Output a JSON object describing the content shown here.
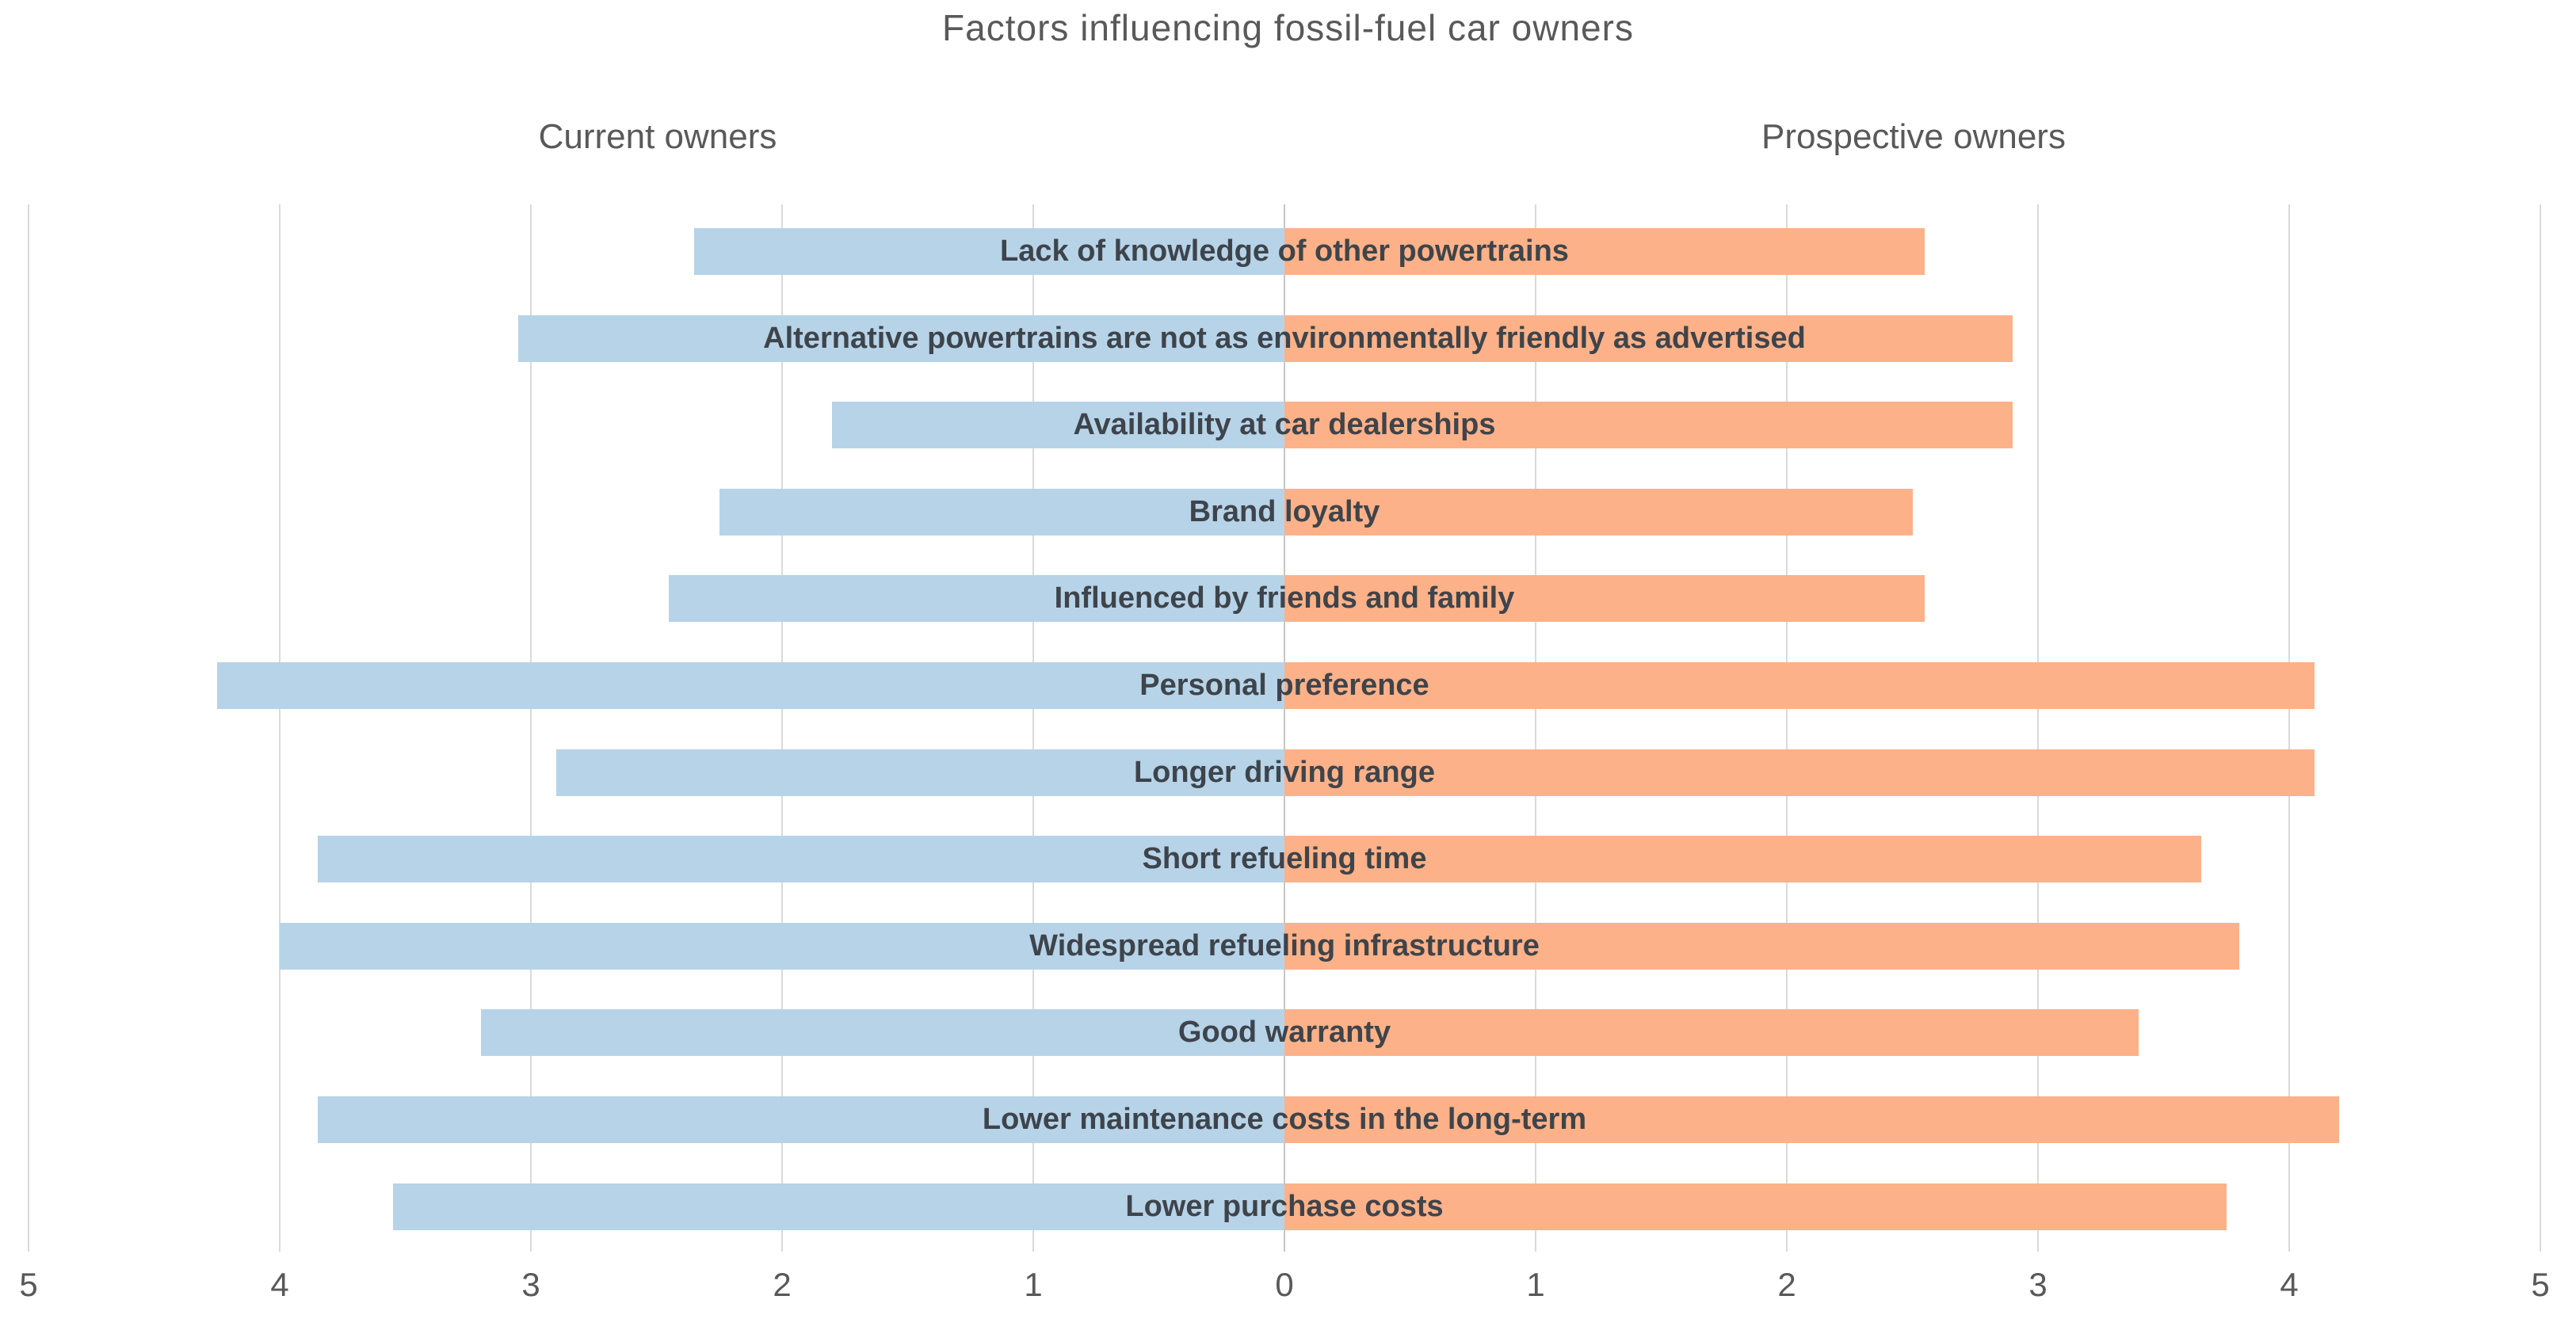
{
  "chart_data": {
    "type": "bar",
    "variant": "diverging-horizontal-butterfly",
    "title": "Factors influencing fossil-fuel car owners",
    "categories": [
      "Lack of knowledge of other powertrains",
      "Alternative powertrains are not as environmentally friendly as advertised",
      "Availability at car dealerships",
      "Brand loyalty",
      "Influenced by friends and family",
      "Personal preference",
      "Longer driving range",
      "Short refueling time",
      "Widespread refueling infrastructure",
      "Good warranty",
      "Lower maintenance costs in the long-term",
      "Lower purchase costs"
    ],
    "series": [
      {
        "name": "Current owners",
        "side": "left",
        "color": "#B7D3E8",
        "values": [
          2.35,
          3.05,
          1.8,
          2.25,
          2.45,
          4.25,
          2.9,
          3.85,
          4.0,
          3.2,
          3.85,
          3.55
        ]
      },
      {
        "name": "Prospective owners",
        "side": "right",
        "color": "#FCB188",
        "values": [
          2.55,
          2.9,
          2.9,
          2.5,
          2.55,
          4.1,
          4.1,
          3.65,
          3.8,
          3.4,
          4.2,
          3.75
        ]
      }
    ],
    "axis": {
      "min": 0,
      "max": 5,
      "tick_labels": [
        "5",
        "4",
        "3",
        "2",
        "1",
        "0",
        "1",
        "2",
        "3",
        "4",
        "5"
      ],
      "gridlines": true,
      "gridline_color": "#DADADA",
      "zero_line_color": "#C6C6C6"
    },
    "category_label_color": "#3E444B",
    "text_color": "#595959",
    "background": "#FFFFFF",
    "legend_position": "top-split-headers"
  }
}
